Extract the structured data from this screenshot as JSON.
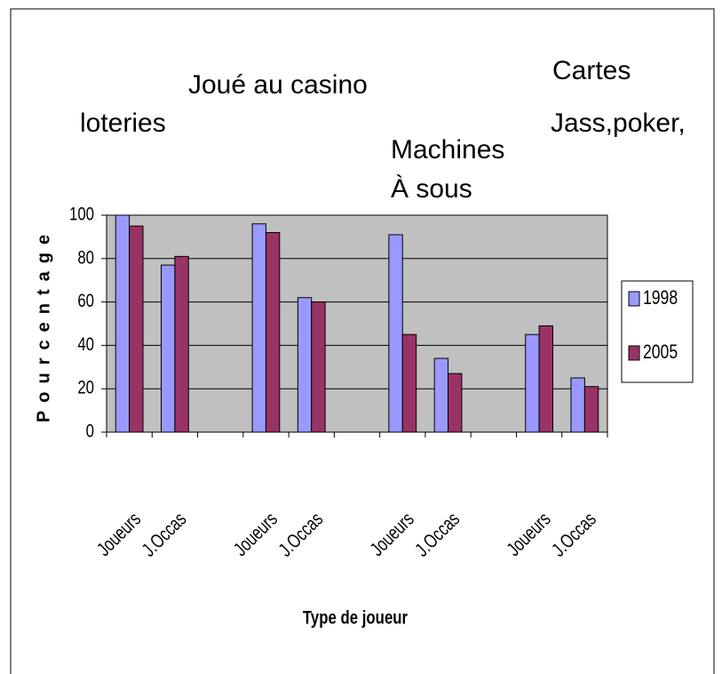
{
  "chart_data": {
    "type": "bar",
    "annotations": [
      "loteries",
      "Joué au casino",
      "Machines",
      "À sous",
      "Cartes",
      "Jass,poker,"
    ],
    "ylabel": "Pourcentage",
    "xlabel": "Type de joueur",
    "categories": [
      "Joueurs",
      "J.Occas",
      null,
      "Joueurs",
      "J.Occas",
      null,
      "Joueurs",
      "J.Occas",
      null,
      "Joueurs",
      "J.Occas"
    ],
    "series": [
      {
        "name": "1998",
        "color": "#9999ff",
        "values": [
          100,
          77,
          null,
          96,
          62,
          null,
          91,
          34,
          null,
          45,
          25
        ]
      },
      {
        "name": "2005",
        "color": "#993366",
        "values": [
          95,
          81,
          null,
          92,
          60,
          null,
          45,
          27,
          null,
          49,
          21
        ]
      }
    ],
    "ylim": [
      0,
      100
    ],
    "yticks": [
      0,
      20,
      40,
      60,
      80,
      100
    ],
    "grid": true,
    "legend": "right"
  }
}
